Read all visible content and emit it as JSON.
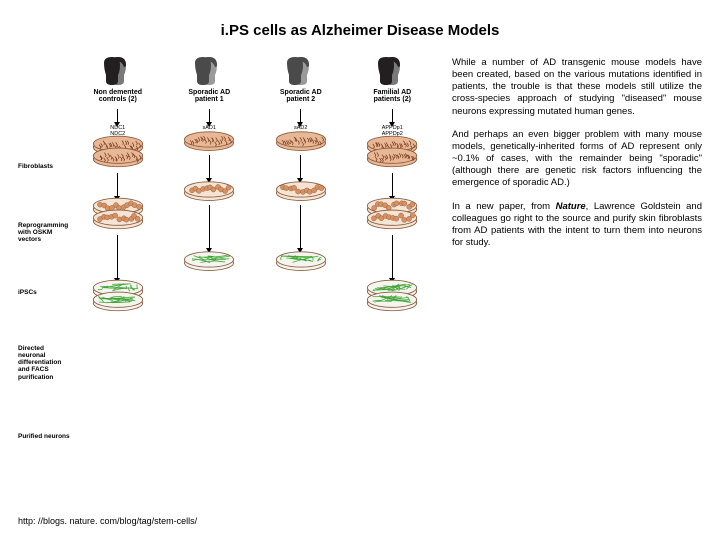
{
  "title": "i.PS cells as Alzheimer Disease Models",
  "footer_url": "http: //blogs. nature. com/blog/tag/stem-cells/",
  "columns": [
    {
      "head_line1": "Non demented",
      "head_line2": "controls (2)",
      "fibro1": "NDC1",
      "fibro2": "NDC2",
      "sad": "",
      "app": "",
      "hair": "#231f20",
      "face": "#7a7a7a"
    },
    {
      "head_line1": "Sporadic AD",
      "head_line2": "patient 1",
      "fibro1": "sAD1",
      "fibro2": "",
      "sad": "",
      "app": "",
      "hair": "#4a4a4a",
      "face": "#9a9a9a"
    },
    {
      "head_line1": "Sporadic AD",
      "head_line2": "patient 2",
      "fibro1": "",
      "fibro2": "sAD2",
      "sad": "",
      "app": "",
      "hair": "#4a4a4a",
      "face": "#9a9a9a"
    },
    {
      "head_line1": "Familial AD",
      "head_line2": "patients (2)",
      "fibro1": "APPDp1",
      "fibro2": "APPDp2",
      "sad": "",
      "app": "",
      "hair": "#231f20",
      "face": "#7a7a7a"
    }
  ],
  "row_labels": {
    "fibroblasts": "Fibroblasts",
    "reprogram": "Reprogramming with OSKM vectors",
    "ipscs": "iPSCs",
    "diff": "Directed neuronal differentiation and FACS purification",
    "neurons": "Purified neurons"
  },
  "paragraphs": [
    "While a number of AD transgenic mouse models have been created, based on the various mutations identified in patients, the trouble is that these models still utilize the cross-species approach of studying \"diseased\" mouse neurons expressing mutated human genes.",
    "And perhaps an even bigger problem with many mouse models, genetically-inherited forms of AD represent only ~0.1% of cases, with the remainder being \"sporadic\" (although there are genetic risk factors influencing the emergence of sporadic AD.)",
    "In a new paper, from <span class=\"emph\">Nature</span>, Lawrence Goldstein and colleagues go right to the source and purify skin fibroblasts from AD patients with the intent to turn them into neurons for study."
  ],
  "colors": {
    "dish_rim": "#8b5a3c",
    "dish_fill": "#e8b896",
    "fibro_pattern": "#7a3d1e",
    "ipsc_cell": "#d89060",
    "neuron": "#3fa535"
  }
}
